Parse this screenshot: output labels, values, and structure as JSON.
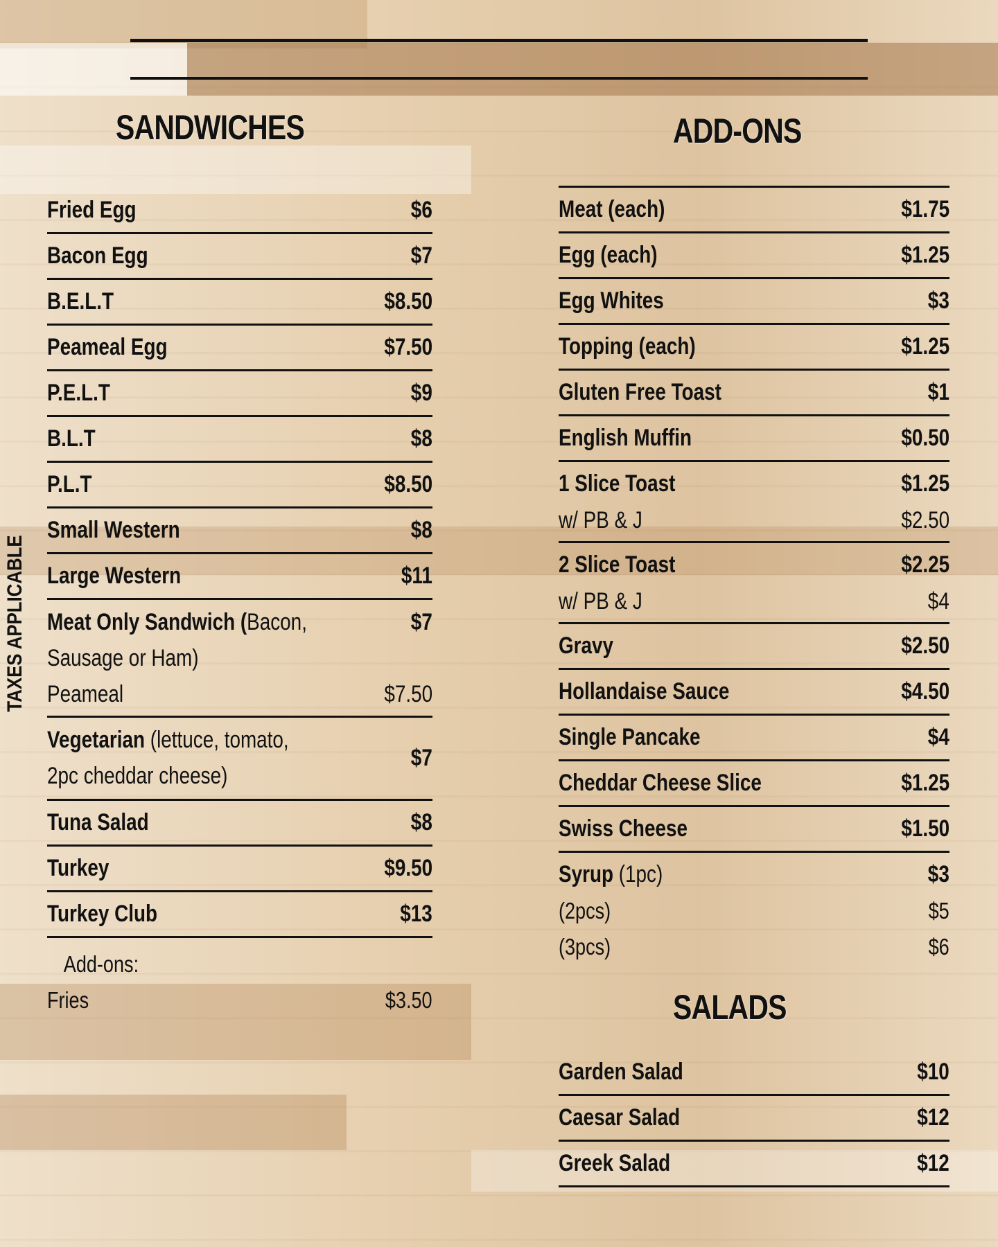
{
  "side_note": "TAXES APPLICABLE",
  "sandwiches": {
    "heading": "SANDWICHES",
    "items": [
      {
        "name": "Fried Egg",
        "price": "$6"
      },
      {
        "name": "Bacon Egg",
        "price": "$7"
      },
      {
        "name": "B.E.L.T",
        "price": "$8.50"
      },
      {
        "name": "Peameal Egg",
        "price": "$7.50"
      },
      {
        "name": "P.E.L.T",
        "price": "$9"
      },
      {
        "name": "B.L.T",
        "price": "$8"
      },
      {
        "name": "P.L.T",
        "price": "$8.50"
      },
      {
        "name": "Small Western",
        "price": "$8"
      },
      {
        "name": "Large Western",
        "price": "$11"
      }
    ],
    "meat_only": {
      "name": "Meat Only Sandwich (",
      "detail_1": "Bacon,",
      "detail_2": "Sausage or Ham)",
      "price": "$7",
      "option_name": "Peameal",
      "option_price": "$7.50"
    },
    "vegetarian": {
      "name": "Vegetarian",
      "detail_1": "(lettuce, tomato,",
      "detail_2": "2pc cheddar cheese)",
      "price": "$7"
    },
    "items_2": [
      {
        "name": "Tuna Salad",
        "price": "$8"
      },
      {
        "name": "Turkey",
        "price": "$9.50"
      },
      {
        "name": "Turkey Club",
        "price": "$13"
      }
    ],
    "addons_label": "Add-ons:",
    "fries_name": "Fries",
    "fries_price": "$3.50"
  },
  "addons": {
    "heading": "ADD-ONS",
    "items_1": [
      {
        "name": "Meat (each)",
        "price": "$1.75"
      },
      {
        "name": "Egg (each)",
        "price": "$1.25"
      },
      {
        "name": "Egg Whites",
        "price": "$3"
      },
      {
        "name": "Topping (each)",
        "price": "$1.25"
      },
      {
        "name": "Gluten Free Toast",
        "price": "$1"
      },
      {
        "name": "English Muffin",
        "price": "$0.50"
      }
    ],
    "toast_1": {
      "name": "1 Slice Toast",
      "price": "$1.25",
      "opt_name": "w/ PB & J",
      "opt_price": "$2.50"
    },
    "toast_2": {
      "name": "2 Slice Toast",
      "price": "$2.25",
      "opt_name": "w/ PB & J",
      "opt_price": "$4"
    },
    "items_2": [
      {
        "name": "Gravy",
        "price": "$2.50"
      },
      {
        "name": "Hollandaise Sauce",
        "price": "$4.50"
      },
      {
        "name": "Single Pancake",
        "price": "$4"
      },
      {
        "name": "Cheddar Cheese Slice",
        "price": "$1.25"
      },
      {
        "name": "Swiss Cheese",
        "price": "$1.50"
      }
    ],
    "syrup": {
      "name": "Syrup",
      "detail": "(1pc)",
      "price": "$3",
      "opt2_name": "(2pcs)",
      "opt2_price": "$5",
      "opt3_name": "(3pcs)",
      "opt3_price": "$6"
    }
  },
  "salads": {
    "heading": "SALADS",
    "items": [
      {
        "name": "Garden Salad",
        "price": "$10"
      },
      {
        "name": "Caesar Salad",
        "price": "$12"
      },
      {
        "name": "Greek Salad",
        "price": "$12"
      }
    ]
  }
}
